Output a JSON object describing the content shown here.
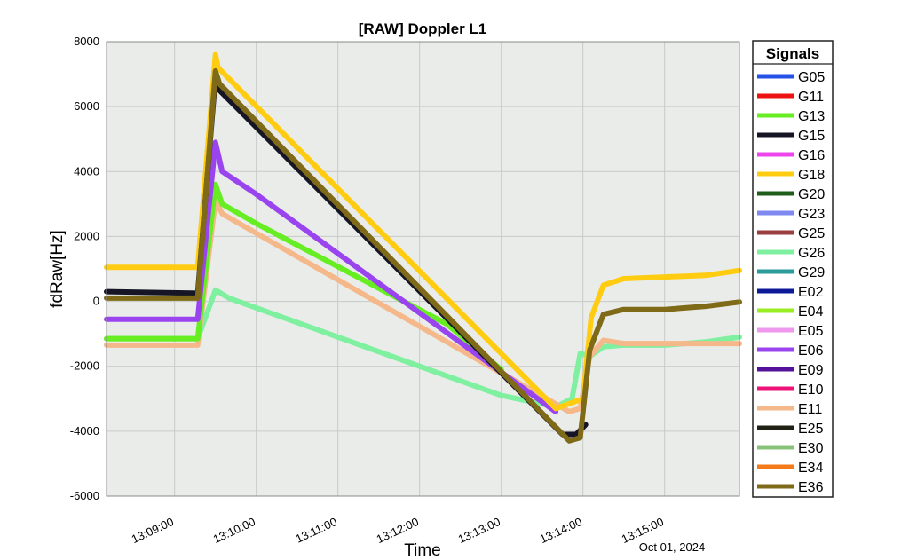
{
  "chart_data": {
    "type": "line",
    "title": "[RAW] Doppler L1",
    "xlabel": "Time",
    "ylabel": "fdRaw[Hz]",
    "date_label": "Oct 01, 2024",
    "xlim": [
      "13:08:10",
      "13:15:55"
    ],
    "ylim": [
      -6000,
      8000
    ],
    "y_ticks": [
      -6000,
      -4000,
      -2000,
      0,
      2000,
      4000,
      6000,
      8000
    ],
    "x_ticks": [
      "13:09:00",
      "13:10:00",
      "13:11:00",
      "13:12:00",
      "13:13:00",
      "13:14:00",
      "13:15:00"
    ],
    "grid": true,
    "legend": {
      "title": "Signals",
      "placement": "right-outside"
    },
    "legend_entries": [
      {
        "name": "G05",
        "color": "#2452e6"
      },
      {
        "name": "G11",
        "color": "#ee1111"
      },
      {
        "name": "G13",
        "color": "#66ee22"
      },
      {
        "name": "G15",
        "color": "#151525"
      },
      {
        "name": "G16",
        "color": "#ee44ee"
      },
      {
        "name": "G18",
        "color": "#ffcc11"
      },
      {
        "name": "G20",
        "color": "#1f5e18"
      },
      {
        "name": "G23",
        "color": "#7f88f0"
      },
      {
        "name": "G25",
        "color": "#9a3f3f"
      },
      {
        "name": "G26",
        "color": "#7ff0a0"
      },
      {
        "name": "G29",
        "color": "#2a9a9a"
      },
      {
        "name": "E02",
        "color": "#0c1a99"
      },
      {
        "name": "E04",
        "color": "#99ee22"
      },
      {
        "name": "E05",
        "color": "#ee99ee"
      },
      {
        "name": "E06",
        "color": "#9944ee"
      },
      {
        "name": "E09",
        "color": "#55119a"
      },
      {
        "name": "E10",
        "color": "#ee1177"
      },
      {
        "name": "E11",
        "color": "#f5b88a"
      },
      {
        "name": "E25",
        "color": "#202015"
      },
      {
        "name": "E30",
        "color": "#88c27a"
      },
      {
        "name": "E34",
        "color": "#f57a1a"
      },
      {
        "name": "E36",
        "color": "#7f6a18"
      }
    ],
    "series": [
      {
        "name": "G18",
        "color": "#ffcc11",
        "x": [
          "13:08:10",
          "13:09:17",
          "13:09:30",
          "13:09:32",
          "13:13:40",
          "13:14:00",
          "13:14:06",
          "13:14:15",
          "13:14:30",
          "13:15:00",
          "13:15:30",
          "13:15:55"
        ],
        "y": [
          1050,
          1050,
          7600,
          7200,
          -3300,
          -3000,
          -500,
          500,
          700,
          750,
          800,
          950
        ]
      },
      {
        "name": "E36",
        "color": "#7f6a18",
        "x": [
          "13:08:10",
          "13:09:17",
          "13:09:30",
          "13:09:33",
          "13:13:50",
          "13:13:58",
          "13:14:05",
          "13:14:15",
          "13:14:30",
          "13:15:00",
          "13:15:30",
          "13:15:55"
        ],
        "y": [
          100,
          100,
          7100,
          6700,
          -4300,
          -4200,
          -1500,
          -400,
          -250,
          -250,
          -150,
          -20
        ]
      },
      {
        "name": "G15",
        "color": "#151525",
        "x": [
          "13:08:10",
          "13:09:17",
          "13:09:30",
          "13:09:33",
          "13:13:45",
          "13:13:55",
          "13:14:02"
        ],
        "y": [
          300,
          250,
          6900,
          6500,
          -4100,
          -4100,
          -3800
        ]
      },
      {
        "name": "E06",
        "color": "#9944ee",
        "x": [
          "13:08:10",
          "13:09:17",
          "13:09:30",
          "13:09:35",
          "13:10:00",
          "13:13:40"
        ],
        "y": [
          -550,
          -550,
          4900,
          4000,
          3300,
          -3400
        ]
      },
      {
        "name": "G13",
        "color": "#66ee22",
        "x": [
          "13:08:10",
          "13:09:17",
          "13:09:30",
          "13:09:35",
          "13:10:00",
          "13:12:20",
          "13:13:00"
        ],
        "y": [
          -1150,
          -1150,
          3600,
          3000,
          2400,
          -700,
          -2100
        ]
      },
      {
        "name": "E11",
        "color": "#f5b88a",
        "x": [
          "13:08:10",
          "13:09:17",
          "13:09:30",
          "13:09:35",
          "13:10:00",
          "13:13:50",
          "13:13:58",
          "13:14:05",
          "13:14:15",
          "13:14:30",
          "13:15:00",
          "13:15:30",
          "13:15:55"
        ],
        "y": [
          -1350,
          -1350,
          3100,
          2700,
          2100,
          -3400,
          -3300,
          -1700,
          -1200,
          -1300,
          -1300,
          -1300,
          -1300
        ]
      },
      {
        "name": "G26",
        "color": "#7ff0a0",
        "x": [
          "13:08:10",
          "13:09:17",
          "13:09:30",
          "13:09:40",
          "13:13:00",
          "13:13:40",
          "13:13:52",
          "13:13:58",
          "13:14:05",
          "13:14:15",
          "13:14:30",
          "13:15:00",
          "13:15:30",
          "13:15:55"
        ],
        "y": [
          -1150,
          -1150,
          350,
          100,
          -2900,
          -3250,
          -3000,
          -1600,
          -1700,
          -1400,
          -1350,
          -1350,
          -1250,
          -1100
        ]
      }
    ]
  }
}
